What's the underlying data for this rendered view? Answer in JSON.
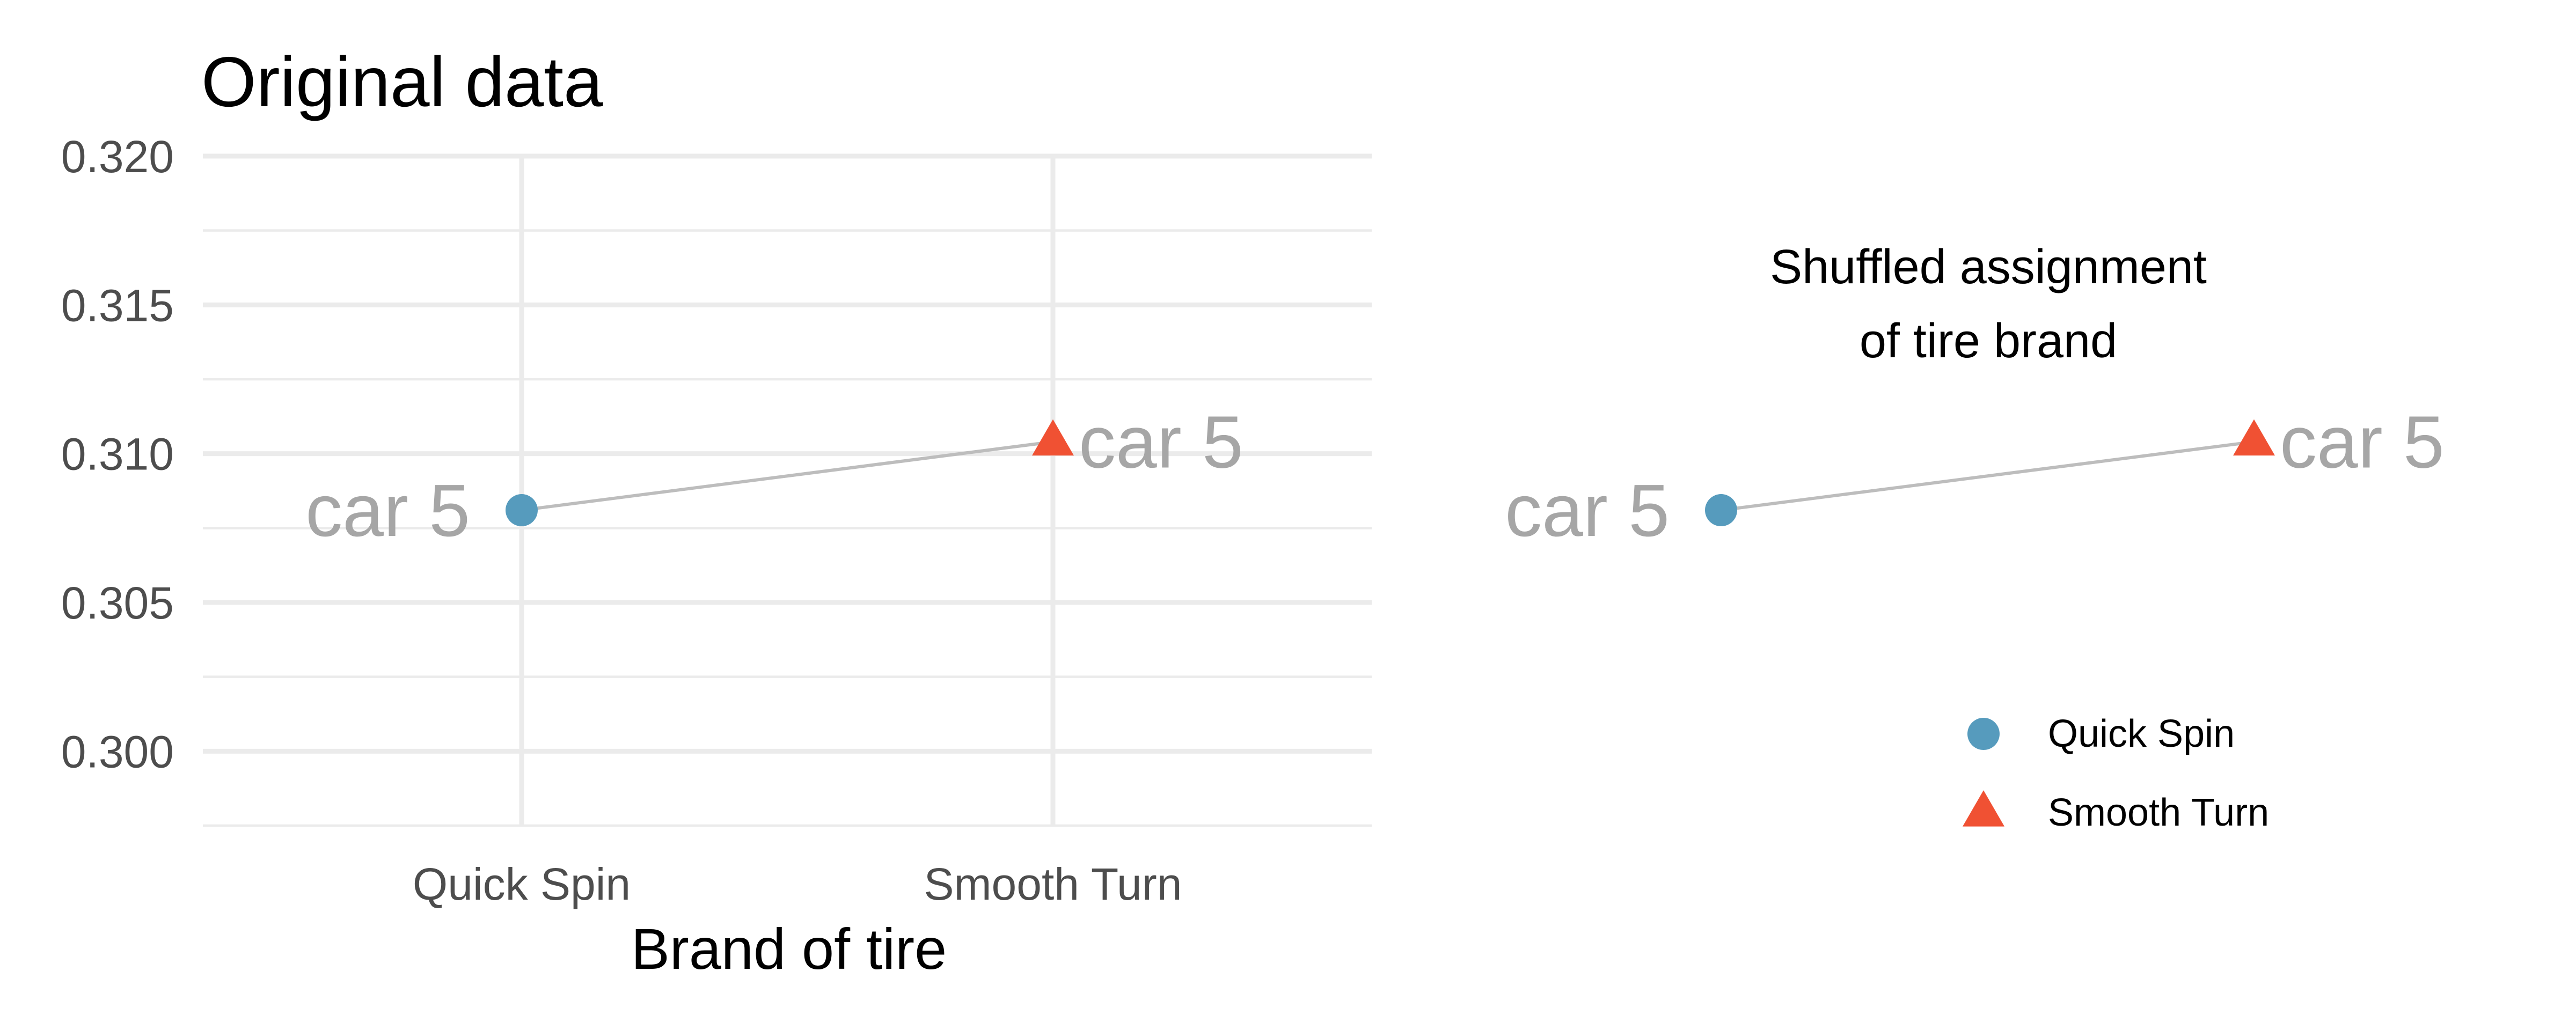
{
  "chart_data": [
    {
      "type": "scatter",
      "title": "Original data",
      "xlabel": "Brand of tire",
      "ylabel": "",
      "categories": [
        "Quick Spin",
        "Smooth Turn"
      ],
      "ylim": [
        0.2975,
        0.32
      ],
      "yticks": [
        "0.300",
        "0.305",
        "0.310",
        "0.315",
        "0.320"
      ],
      "grid": true,
      "series": [
        {
          "name": "Quick Spin",
          "marker": "circle",
          "color": "#569bbd",
          "x": "Quick Spin",
          "y": 0.3081,
          "label": "car 5"
        },
        {
          "name": "Smooth Turn",
          "marker": "triangle",
          "color": "#f05133",
          "x": "Smooth Turn",
          "y": 0.3104,
          "label": "car 5"
        }
      ]
    },
    {
      "type": "scatter",
      "title": "Shuffled assignment\nof tire brand",
      "title_lines": [
        "Shuffled assignment",
        "of tire brand"
      ],
      "xlabel": "",
      "ylabel": "",
      "categories": [
        "Quick Spin",
        "Smooth Turn"
      ],
      "ylim": [
        0.2975,
        0.32
      ],
      "grid": false,
      "series": [
        {
          "name": "Quick Spin",
          "marker": "circle",
          "color": "#569bbd",
          "x": "Quick Spin",
          "y": 0.3081,
          "label": "car 5"
        },
        {
          "name": "Smooth Turn",
          "marker": "triangle",
          "color": "#f05133",
          "x": "Smooth Turn",
          "y": 0.3104,
          "label": "car 5"
        }
      ],
      "legend": {
        "position": "bottom-right",
        "entries": [
          {
            "label": "Quick Spin",
            "marker": "circle",
            "color": "#569bbd"
          },
          {
            "label": "Smooth Turn",
            "marker": "triangle",
            "color": "#f05133"
          }
        ]
      }
    }
  ]
}
